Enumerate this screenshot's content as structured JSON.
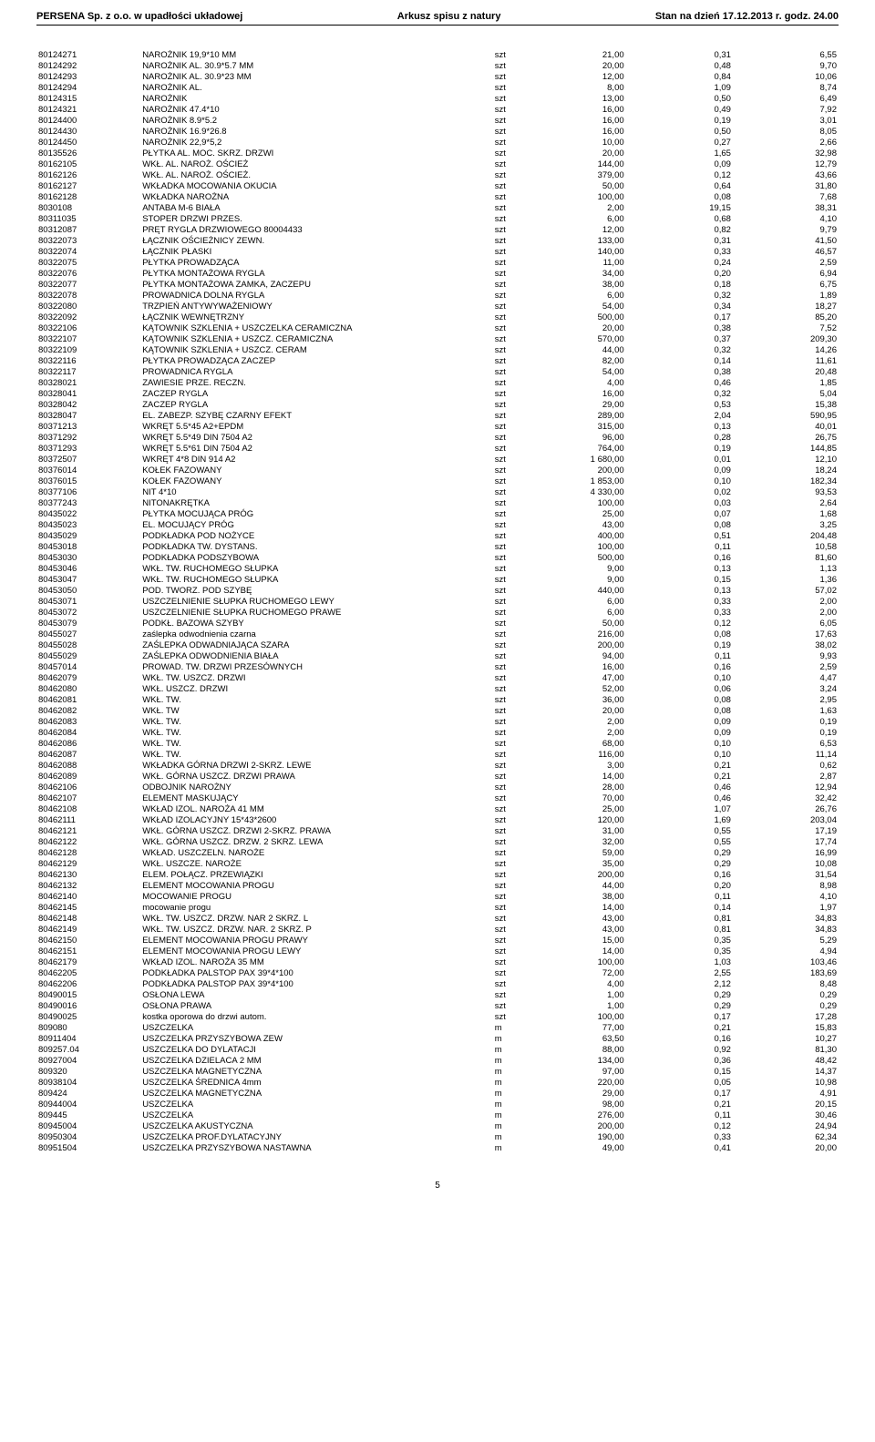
{
  "header": {
    "left": "PERSENA Sp. z o.o. w upadłości układowej",
    "center": "Arkusz spisu z natury",
    "right": "Stan na dzień 17.12.2013 r. godz. 24.00"
  },
  "page_number": "5",
  "rows": [
    [
      "80124271",
      "NAROŻNIK 19,9*10 MM",
      "szt",
      "21,00",
      "0,31",
      "6,55"
    ],
    [
      "80124292",
      "NAROŻNIK AL. 30.9*5.7 MM",
      "szt",
      "20,00",
      "0,48",
      "9,70"
    ],
    [
      "80124293",
      "NAROŻNIK AL. 30.9*23 MM",
      "szt",
      "12,00",
      "0,84",
      "10,06"
    ],
    [
      "80124294",
      "NAROŻNIK AL.",
      "szt",
      "8,00",
      "1,09",
      "8,74"
    ],
    [
      "80124315",
      "NAROŻNIK",
      "szt",
      "13,00",
      "0,50",
      "6,49"
    ],
    [
      "80124321",
      "NAROŻNIK 47.4*10",
      "szt",
      "16,00",
      "0,49",
      "7,92"
    ],
    [
      "80124400",
      "NAROŻNIK 8.9*5.2",
      "szt",
      "16,00",
      "0,19",
      "3,01"
    ],
    [
      "80124430",
      "NAROŻNIK 16.9*26.8",
      "szt",
      "16,00",
      "0,50",
      "8,05"
    ],
    [
      "80124450",
      "NAROŻNIK 22,9*5,2",
      "szt",
      "10,00",
      "0,27",
      "2,66"
    ],
    [
      "80135526",
      "PŁYTKA AL. MOC. SKRZ. DRZWI",
      "szt",
      "20,00",
      "1,65",
      "32,98"
    ],
    [
      "80162105",
      "WKŁ. AL. NAROŻ. OŚCIEŻ",
      "szt",
      "144,00",
      "0,09",
      "12,79"
    ],
    [
      "80162126",
      "WKŁ. AL. NAROŻ. OŚCIEŻ.",
      "szt",
      "379,00",
      "0,12",
      "43,66"
    ],
    [
      "80162127",
      "WKŁADKA MOCOWANIA OKUCIA",
      "szt",
      "50,00",
      "0,64",
      "31,80"
    ],
    [
      "80162128",
      "WKŁADKA NAROŻNA",
      "szt",
      "100,00",
      "0,08",
      "7,68"
    ],
    [
      "8030108",
      "ANTABA M-6 BIAŁA",
      "szt",
      "2,00",
      "19,15",
      "38,31"
    ],
    [
      "80311035",
      "STOPER DRZWI PRZES.",
      "szt",
      "6,00",
      "0,68",
      "4,10"
    ],
    [
      "80312087",
      "PRĘT RYGLA DRZWIOWEGO 80004433",
      "szt",
      "12,00",
      "0,82",
      "9,79"
    ],
    [
      "80322073",
      "ŁĄCZNIK OŚCIEŻNICY ZEWN.",
      "szt",
      "133,00",
      "0,31",
      "41,50"
    ],
    [
      "80322074",
      "ŁĄCZNIK PŁASKI",
      "szt",
      "140,00",
      "0,33",
      "46,57"
    ],
    [
      "80322075",
      "PŁYTKA PROWADZĄCA",
      "szt",
      "11,00",
      "0,24",
      "2,59"
    ],
    [
      "80322076",
      "PŁYTKA MONTAŻOWA RYGLA",
      "szt",
      "34,00",
      "0,20",
      "6,94"
    ],
    [
      "80322077",
      "PŁYTKA MONTAŻOWA ZAMKA, ZACZEPU",
      "szt",
      "38,00",
      "0,18",
      "6,75"
    ],
    [
      "80322078",
      "PROWADNICA DOLNA RYGLA",
      "szt",
      "6,00",
      "0,32",
      "1,89"
    ],
    [
      "80322080",
      "TRZPIEŃ ANTYWYWAŻENIOWY",
      "szt",
      "54,00",
      "0,34",
      "18,27"
    ],
    [
      "80322092",
      "ŁĄCZNIK WEWNĘTRZNY",
      "szt",
      "500,00",
      "0,17",
      "85,20"
    ],
    [
      "80322106",
      "KĄTOWNIK SZKLENIA + USZCZELKA CERAMICZNA",
      "szt",
      "20,00",
      "0,38",
      "7,52"
    ],
    [
      "80322107",
      "KĄTOWNIK SZKLENIA + USZCZ. CERAMICZNA",
      "szt",
      "570,00",
      "0,37",
      "209,30"
    ],
    [
      "80322109",
      "KĄTOWNIK SZKLENIA + USZCZ. CERAM",
      "szt",
      "44,00",
      "0,32",
      "14,26"
    ],
    [
      "80322116",
      "PŁYTKA PROWADZĄCA ZACZEP",
      "szt",
      "82,00",
      "0,14",
      "11,61"
    ],
    [
      "80322117",
      "PROWADNICA RYGLA",
      "szt",
      "54,00",
      "0,38",
      "20,48"
    ],
    [
      "80328021",
      "ZAWIESIE PRZE. RECZN.",
      "szt",
      "4,00",
      "0,46",
      "1,85"
    ],
    [
      "80328041",
      "ZACZEP RYGLA",
      "szt",
      "16,00",
      "0,32",
      "5,04"
    ],
    [
      "80328042",
      "ZACZEP RYGLA",
      "szt",
      "29,00",
      "0,53",
      "15,38"
    ],
    [
      "80328047",
      "EL. ZABEZP. SZYBĘ CZARNY EFEKT",
      "szt",
      "289,00",
      "2,04",
      "590,95"
    ],
    [
      "80371213",
      "WKRĘT 5.5*45 A2+EPDM",
      "szt",
      "315,00",
      "0,13",
      "40,01"
    ],
    [
      "80371292",
      "WKRĘT 5.5*49 DIN 7504 A2",
      "szt",
      "96,00",
      "0,28",
      "26,75"
    ],
    [
      "80371293",
      "WKRĘT 5.5*61 DIN 7504 A2",
      "szt",
      "764,00",
      "0,19",
      "144,85"
    ],
    [
      "80372507",
      "WKRĘT 4*8 DIN 914 A2",
      "szt",
      "1 680,00",
      "0,01",
      "12,10"
    ],
    [
      "80376014",
      "KOŁEK FAZOWANY",
      "szt",
      "200,00",
      "0,09",
      "18,24"
    ],
    [
      "80376015",
      "KOŁEK FAZOWANY",
      "szt",
      "1 853,00",
      "0,10",
      "182,34"
    ],
    [
      "80377106",
      "NIT 4*10",
      "szt",
      "4 330,00",
      "0,02",
      "93,53"
    ],
    [
      "80377243",
      "NITONAKRĘTKA",
      "szt",
      "100,00",
      "0,03",
      "2,64"
    ],
    [
      "80435022",
      "PŁYTKA MOCUJĄCA PRÓG",
      "szt",
      "25,00",
      "0,07",
      "1,68"
    ],
    [
      "80435023",
      "EL. MOCUJĄCY PRÓG",
      "szt",
      "43,00",
      "0,08",
      "3,25"
    ],
    [
      "80435029",
      "PODKŁADKA POD NOŻYCE",
      "szt",
      "400,00",
      "0,51",
      "204,48"
    ],
    [
      "80453018",
      "PODKŁADKA TW. DYSTANS.",
      "szt",
      "100,00",
      "0,11",
      "10,58"
    ],
    [
      "80453030",
      "PODKŁADKA PODSZYBOWA",
      "szt",
      "500,00",
      "0,16",
      "81,60"
    ],
    [
      "80453046",
      "WKŁ. TW. RUCHOMEGO SŁUPKA",
      "szt",
      "9,00",
      "0,13",
      "1,13"
    ],
    [
      "80453047",
      "WKŁ. TW. RUCHOMEGO SŁUPKA",
      "szt",
      "9,00",
      "0,15",
      "1,36"
    ],
    [
      "80453050",
      "POD. TWORZ. POD SZYBĘ",
      "szt",
      "440,00",
      "0,13",
      "57,02"
    ],
    [
      "80453071",
      "USZCZELNIENIE SŁUPKA RUCHOMEGO LEWY",
      "szt",
      "6,00",
      "0,33",
      "2,00"
    ],
    [
      "80453072",
      "USZCZELNIENIE SŁUPKA RUCHOMEGO PRAWE",
      "szt",
      "6,00",
      "0,33",
      "2,00"
    ],
    [
      "80453079",
      "PODKŁ. BAZOWA SZYBY",
      "szt",
      "50,00",
      "0,12",
      "6,05"
    ],
    [
      "80455027",
      "zaślepka odwodnienia czarna",
      "szt",
      "216,00",
      "0,08",
      "17,63"
    ],
    [
      "80455028",
      "ZAŚLEPKA ODWADNIAJĄCA SZARA",
      "szt",
      "200,00",
      "0,19",
      "38,02"
    ],
    [
      "80455029",
      "ZAŚLEPKA ODWODNIENIA BIAŁA",
      "szt",
      "94,00",
      "0,11",
      "9,93"
    ],
    [
      "80457014",
      "PROWAD. TW. DRZWI PRZESÓWNYCH",
      "szt",
      "16,00",
      "0,16",
      "2,59"
    ],
    [
      "80462079",
      "WKŁ. TW. USZCZ. DRZWI",
      "szt",
      "47,00",
      "0,10",
      "4,47"
    ],
    [
      "80462080",
      "WKŁ. USZCZ. DRZWI",
      "szt",
      "52,00",
      "0,06",
      "3,24"
    ],
    [
      "80462081",
      "WKŁ. TW.",
      "szt",
      "36,00",
      "0,08",
      "2,95"
    ],
    [
      "80462082",
      "WKŁ. TW",
      "szt",
      "20,00",
      "0,08",
      "1,63"
    ],
    [
      "80462083",
      "WKŁ. TW.",
      "szt",
      "2,00",
      "0,09",
      "0,19"
    ],
    [
      "80462084",
      "WKŁ. TW.",
      "szt",
      "2,00",
      "0,09",
      "0,19"
    ],
    [
      "80462086",
      "WKŁ. TW.",
      "szt",
      "68,00",
      "0,10",
      "6,53"
    ],
    [
      "80462087",
      "WKŁ. TW.",
      "szt",
      "116,00",
      "0,10",
      "11,14"
    ],
    [
      "80462088",
      "WKŁADKA GÓRNA DRZWI 2-SKRZ. LEWE",
      "szt",
      "3,00",
      "0,21",
      "0,62"
    ],
    [
      "80462089",
      "WKŁ. GÓRNA USZCZ. DRZWI PRAWA",
      "szt",
      "14,00",
      "0,21",
      "2,87"
    ],
    [
      "80462106",
      "ODBOJNIK NAROŻNY",
      "szt",
      "28,00",
      "0,46",
      "12,94"
    ],
    [
      "80462107",
      "ELEMENT MASKUJĄCY",
      "szt",
      "70,00",
      "0,46",
      "32,42"
    ],
    [
      "80462108",
      "WKŁAD IZOL. NAROŻA 41 MM",
      "szt",
      "25,00",
      "1,07",
      "26,76"
    ],
    [
      "80462111",
      "WKŁAD IZOLACYJNY 15*43*2600",
      "szt",
      "120,00",
      "1,69",
      "203,04"
    ],
    [
      "80462121",
      "WKŁ. GÓRNA USZCZ. DRZWI 2-SKRZ. PRAWA",
      "szt",
      "31,00",
      "0,55",
      "17,19"
    ],
    [
      "80462122",
      "WKŁ. GÓRNA USZCZ. DRZW. 2 SKRZ. LEWA",
      "szt",
      "32,00",
      "0,55",
      "17,74"
    ],
    [
      "80462128",
      "WKŁAD. USZCZELN. NAROŻE",
      "szt",
      "59,00",
      "0,29",
      "16,99"
    ],
    [
      "80462129",
      "WKŁ. USZCZE. NAROŻE",
      "szt",
      "35,00",
      "0,29",
      "10,08"
    ],
    [
      "80462130",
      "ELEM. POŁĄCZ. PRZEWIĄZKI",
      "szt",
      "200,00",
      "0,16",
      "31,54"
    ],
    [
      "80462132",
      "ELEMENT MOCOWANIA PROGU",
      "szt",
      "44,00",
      "0,20",
      "8,98"
    ],
    [
      "80462140",
      "MOCOWANIE PROGU",
      "szt",
      "38,00",
      "0,11",
      "4,10"
    ],
    [
      "80462145",
      "mocowanie progu",
      "szt",
      "14,00",
      "0,14",
      "1,97"
    ],
    [
      "80462148",
      "WKŁ. TW. USZCZ. DRZW. NAR 2 SKRZ. L",
      "szt",
      "43,00",
      "0,81",
      "34,83"
    ],
    [
      "80462149",
      "WKŁ. TW. USZCZ. DRZW. NAR. 2 SKRZ. P",
      "szt",
      "43,00",
      "0,81",
      "34,83"
    ],
    [
      "80462150",
      "ELEMENT MOCOWANIA PROGU PRAWY",
      "szt",
      "15,00",
      "0,35",
      "5,29"
    ],
    [
      "80462151",
      "ELEMENT MOCOWANIA PROGU LEWY",
      "szt",
      "14,00",
      "0,35",
      "4,94"
    ],
    [
      "80462179",
      "WKŁAD IZOL. NAROŻA 35 MM",
      "szt",
      "100,00",
      "1,03",
      "103,46"
    ],
    [
      "80462205",
      "PODKŁADKA PALSTOP PAX 39*4*100",
      "szt",
      "72,00",
      "2,55",
      "183,69"
    ],
    [
      "80462206",
      "PODKŁADKA PALSTOP PAX 39*4*100",
      "szt",
      "4,00",
      "2,12",
      "8,48"
    ],
    [
      "80490015",
      "OSŁONA LEWA",
      "szt",
      "1,00",
      "0,29",
      "0,29"
    ],
    [
      "80490016",
      "OSŁONA PRAWA",
      "szt",
      "1,00",
      "0,29",
      "0,29"
    ],
    [
      "80490025",
      "kostka oporowa do drzwi autom.",
      "szt",
      "100,00",
      "0,17",
      "17,28"
    ],
    [
      "809080",
      "USZCZELKA",
      "m",
      "77,00",
      "0,21",
      "15,83"
    ],
    [
      "80911404",
      "USZCZELKA PRZYSZYBOWA ZEW",
      "m",
      "63,50",
      "0,16",
      "10,27"
    ],
    [
      "809257.04",
      "USZCZELKA DO DYLATACJI",
      "m",
      "88,00",
      "0,92",
      "81,30"
    ],
    [
      "80927004",
      "USZCZELKA DZIELACA 2 MM",
      "m",
      "134,00",
      "0,36",
      "48,42"
    ],
    [
      "809320",
      "USZCZELKA MAGNETYCZNA",
      "m",
      "97,00",
      "0,15",
      "14,37"
    ],
    [
      "80938104",
      "USZCZELKA ŚREDNICA 4mm",
      "m",
      "220,00",
      "0,05",
      "10,98"
    ],
    [
      "809424",
      "USZCZELKA MAGNETYCZNA",
      "m",
      "29,00",
      "0,17",
      "4,91"
    ],
    [
      "80944004",
      "USZCZELKA",
      "m",
      "98,00",
      "0,21",
      "20,15"
    ],
    [
      "809445",
      "USZCZELKA",
      "m",
      "276,00",
      "0,11",
      "30,46"
    ],
    [
      "80945004",
      "USZCZELKA AKUSTYCZNA",
      "m",
      "200,00",
      "0,12",
      "24,94"
    ],
    [
      "80950304",
      "USZCZELKA PROF.DYLATACYJNY",
      "m",
      "190,00",
      "0,33",
      "62,34"
    ],
    [
      "80951504",
      "USZCZELKA PRZYSZYBOWA NASTAWNA",
      "m",
      "49,00",
      "0,41",
      "20,00"
    ]
  ]
}
